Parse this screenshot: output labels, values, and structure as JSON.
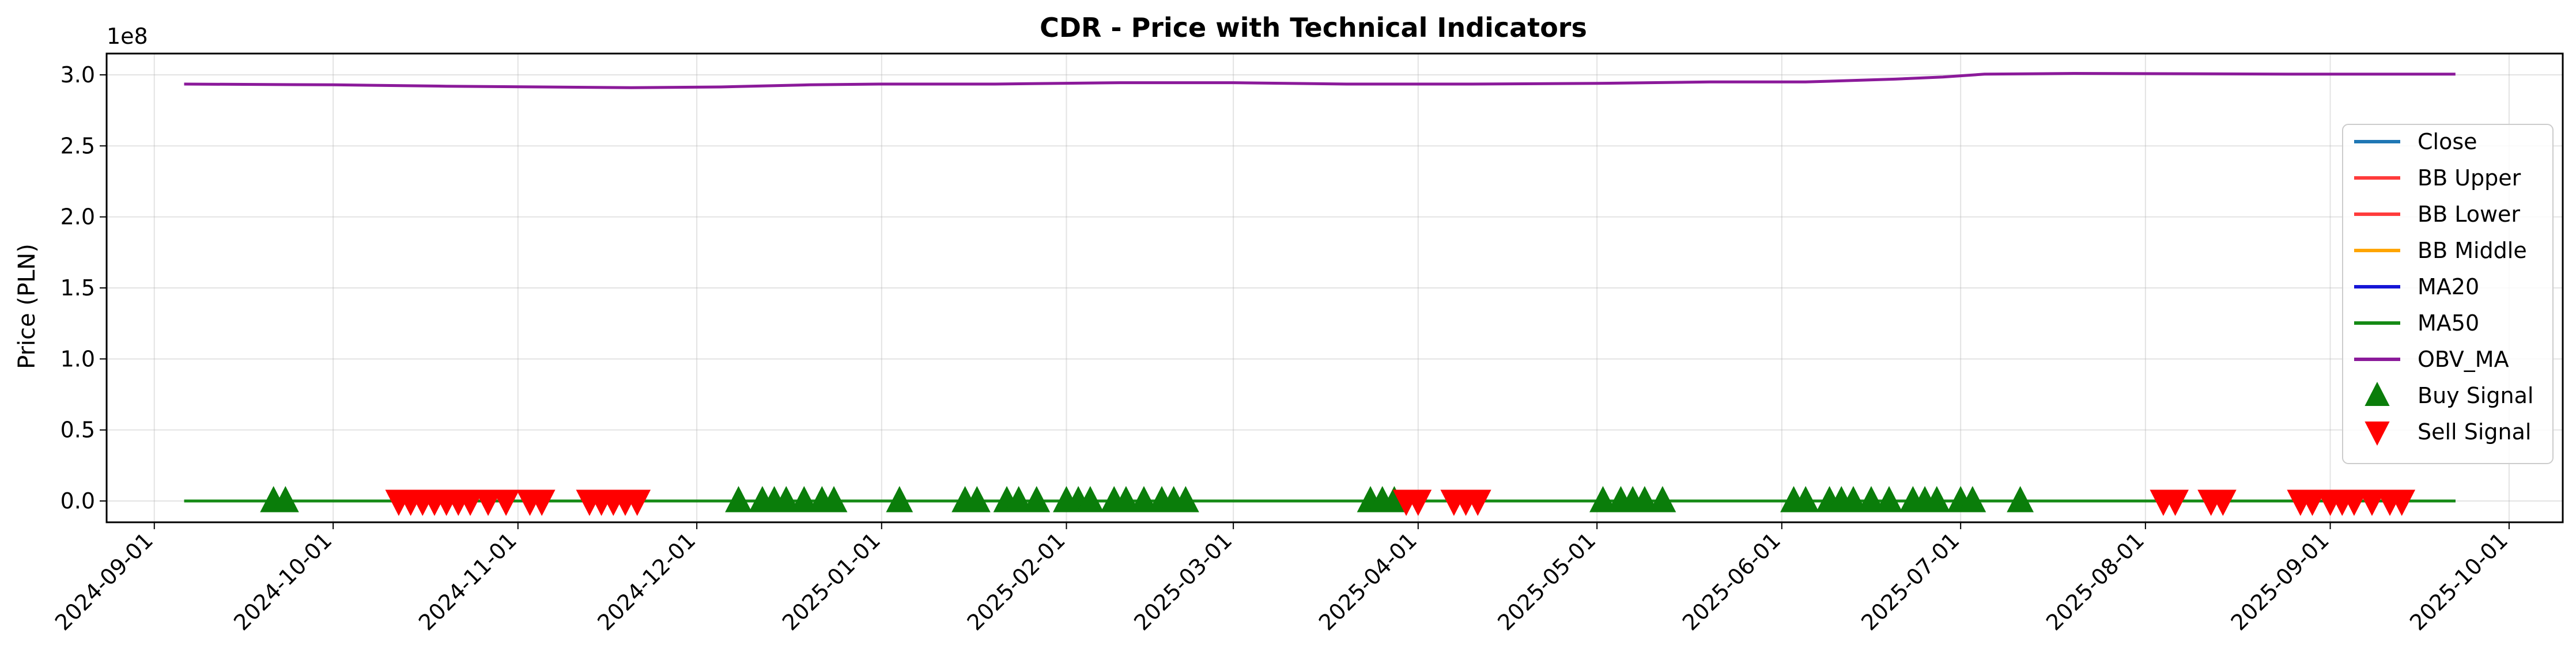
{
  "chart_data": {
    "type": "line",
    "title": "CDR - Price with Technical Indicators",
    "xlabel": "",
    "ylabel": "Price (PLN)",
    "y_scale_label": "1e8",
    "ylim": [
      -0.15,
      3.15
    ],
    "y_tick_values": [
      0.0,
      0.5,
      1.0,
      1.5,
      2.0,
      2.5,
      3.0
    ],
    "y_tick_labels": [
      "0.0",
      "0.5",
      "1.0",
      "1.5",
      "2.0",
      "2.5",
      "3.0"
    ],
    "xlim": [
      "2024-08-24",
      "2025-10-10"
    ],
    "x_ticks": [
      "2024-09-01",
      "2024-10-01",
      "2024-11-01",
      "2024-12-01",
      "2025-01-01",
      "2025-02-01",
      "2025-03-01",
      "2025-04-01",
      "2025-05-01",
      "2025-06-01",
      "2025-07-01",
      "2025-08-01",
      "2025-09-01",
      "2025-10-01"
    ],
    "grid": true,
    "legend_position": "center-right",
    "series": [
      {
        "name": "Close",
        "color": "#1f77b4",
        "kind": "line",
        "x": [
          "2024-09-06",
          "2025-09-22"
        ],
        "values": [
          0.0,
          0.0
        ]
      },
      {
        "name": "BB Upper",
        "color": "#ff3b3b",
        "kind": "line",
        "x": [
          "2024-09-06",
          "2025-09-22"
        ],
        "values": [
          0.0,
          0.0
        ]
      },
      {
        "name": "BB Lower",
        "color": "#ff3b3b",
        "kind": "line",
        "x": [
          "2024-09-06",
          "2025-09-22"
        ],
        "values": [
          0.0,
          0.0
        ]
      },
      {
        "name": "BB Middle",
        "color": "#ffa500",
        "kind": "line",
        "x": [
          "2024-09-06",
          "2025-09-22"
        ],
        "values": [
          0.0,
          0.0
        ]
      },
      {
        "name": "MA20",
        "color": "#1515d6",
        "kind": "line",
        "x": [
          "2024-09-06",
          "2025-09-22"
        ],
        "values": [
          0.0,
          0.0
        ]
      },
      {
        "name": "MA50",
        "color": "#158a15",
        "kind": "line",
        "x": [
          "2024-09-06",
          "2025-09-22"
        ],
        "values": [
          0.0,
          0.0
        ]
      },
      {
        "name": "OBV_MA",
        "color": "#8b1a9a",
        "kind": "line",
        "x": [
          "2024-09-06",
          "2024-10-01",
          "2024-10-20",
          "2024-11-05",
          "2024-11-20",
          "2024-12-05",
          "2024-12-20",
          "2025-01-01",
          "2025-01-20",
          "2025-02-10",
          "2025-03-01",
          "2025-03-20",
          "2025-04-10",
          "2025-05-01",
          "2025-05-20",
          "2025-06-05",
          "2025-06-20",
          "2025-06-28",
          "2025-07-05",
          "2025-07-20",
          "2025-08-05",
          "2025-08-25",
          "2025-09-22"
        ],
        "values": [
          2.935,
          2.93,
          2.92,
          2.915,
          2.91,
          2.915,
          2.93,
          2.935,
          2.935,
          2.945,
          2.945,
          2.935,
          2.935,
          2.94,
          2.95,
          2.95,
          2.97,
          2.985,
          3.005,
          3.01,
          3.008,
          3.005,
          3.005
        ]
      },
      {
        "name": "Buy Signal",
        "color": "#0a7d0a",
        "kind": "marker",
        "marker": "triangle-up",
        "x": [
          "2024-09-21",
          "2024-09-23",
          "2024-12-08",
          "2024-12-12",
          "2024-12-14",
          "2024-12-16",
          "2024-12-19",
          "2024-12-22",
          "2024-12-24",
          "2025-01-04",
          "2025-01-15",
          "2025-01-17",
          "2025-01-22",
          "2025-01-24",
          "2025-01-27",
          "2025-02-01",
          "2025-02-03",
          "2025-02-05",
          "2025-02-09",
          "2025-02-11",
          "2025-02-14",
          "2025-02-17",
          "2025-02-19",
          "2025-02-21",
          "2025-03-24",
          "2025-03-26",
          "2025-03-28",
          "2025-05-02",
          "2025-05-05",
          "2025-05-07",
          "2025-05-09",
          "2025-05-12",
          "2025-06-03",
          "2025-06-05",
          "2025-06-09",
          "2025-06-11",
          "2025-06-13",
          "2025-06-16",
          "2025-06-19",
          "2025-06-23",
          "2025-06-25",
          "2025-06-27",
          "2025-07-01",
          "2025-07-03",
          "2025-07-11"
        ],
        "values": [
          0.0,
          0.0,
          0.0,
          0.0,
          0.0,
          0.0,
          0.0,
          0.0,
          0.0,
          0.0,
          0.0,
          0.0,
          0.0,
          0.0,
          0.0,
          0.0,
          0.0,
          0.0,
          0.0,
          0.0,
          0.0,
          0.0,
          0.0,
          0.0,
          0.0,
          0.0,
          0.0,
          0.0,
          0.0,
          0.0,
          0.0,
          0.0,
          0.0,
          0.0,
          0.0,
          0.0,
          0.0,
          0.0,
          0.0,
          0.0,
          0.0,
          0.0,
          0.0,
          0.0,
          0.0
        ]
      },
      {
        "name": "Sell Signal",
        "color": "#ff0000",
        "kind": "marker",
        "marker": "triangle-down",
        "x": [
          "2024-10-12",
          "2024-10-14",
          "2024-10-16",
          "2024-10-18",
          "2024-10-20",
          "2024-10-22",
          "2024-10-24",
          "2024-10-27",
          "2024-10-30",
          "2024-11-03",
          "2024-11-05",
          "2024-11-13",
          "2024-11-15",
          "2024-11-17",
          "2024-11-19",
          "2024-11-21",
          "2025-03-30",
          "2025-04-01",
          "2025-04-07",
          "2025-04-09",
          "2025-04-11",
          "2025-08-04",
          "2025-08-06",
          "2025-08-12",
          "2025-08-14",
          "2025-08-27",
          "2025-08-29",
          "2025-09-01",
          "2025-09-03",
          "2025-09-05",
          "2025-09-08",
          "2025-09-11",
          "2025-09-13"
        ],
        "values": [
          0.0,
          0.0,
          0.0,
          0.0,
          0.0,
          0.0,
          0.0,
          0.0,
          0.0,
          0.0,
          0.0,
          0.0,
          0.0,
          0.0,
          0.0,
          0.0,
          0.0,
          0.0,
          0.0,
          0.0,
          0.0,
          0.0,
          0.0,
          0.0,
          0.0,
          0.0,
          0.0,
          0.0,
          0.0,
          0.0,
          0.0,
          0.0,
          0.0
        ]
      }
    ]
  }
}
